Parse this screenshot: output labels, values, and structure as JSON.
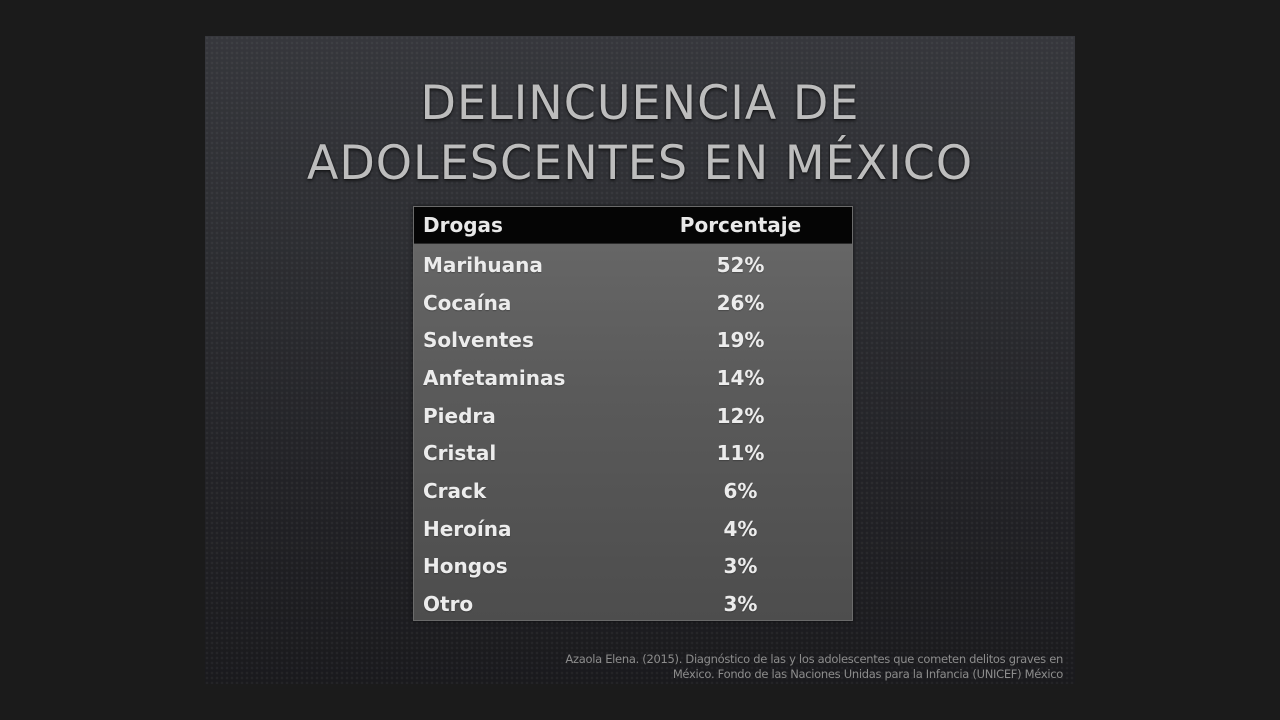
{
  "slide": {
    "title_lines": [
      "DELINCUENCIA DE",
      "ADOLESCENTES EN MÉXICO"
    ],
    "table": {
      "headers": [
        "Drogas",
        "Porcentaje"
      ],
      "rows": [
        {
          "drug": "Marihuana",
          "percent": "52%"
        },
        {
          "drug": "Cocaína",
          "percent": "26%"
        },
        {
          "drug": "Solventes",
          "percent": "19%"
        },
        {
          "drug": "Anfetaminas",
          "percent": "14%"
        },
        {
          "drug": "Piedra",
          "percent": "12%"
        },
        {
          "drug": "Cristal",
          "percent": "11%"
        },
        {
          "drug": "Crack",
          "percent": "6%"
        },
        {
          "drug": "Heroína",
          "percent": "4%"
        },
        {
          "drug": "Hongos",
          "percent": "3%"
        },
        {
          "drug": "Otro",
          "percent": "3%"
        }
      ]
    },
    "citation_lines": [
      "Azaola Elena. (2015). Diagnóstico de las y los adolescentes que cometen delitos graves en",
      "México. Fondo de las Naciones Unidas para la Infancia (UNICEF) México"
    ]
  },
  "colors": {
    "page_background": "#1b1b1b",
    "slide_top": "#36373c",
    "slide_bottom": "#1a1a1d",
    "title_text": "#bdbdbd",
    "table_header_bg": "#050505",
    "table_body_top": "#696969",
    "table_body_bottom": "#4d4d4d",
    "table_text": "#ececec",
    "citation_text": "#8c8c8c"
  }
}
